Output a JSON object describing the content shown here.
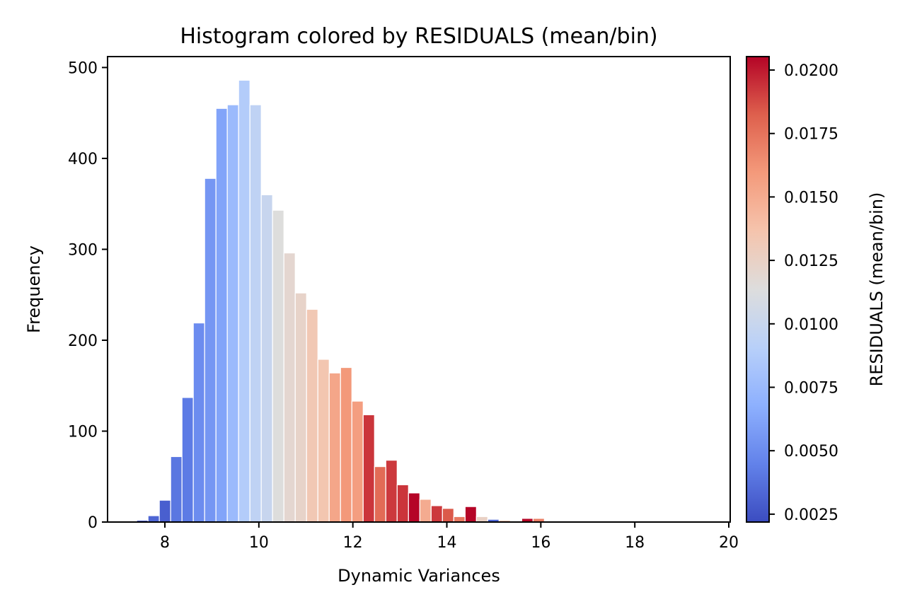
{
  "chart_data": {
    "type": "bar",
    "title": "Histogram colored by RESIDUALS (mean/bin)",
    "xlabel": "Dynamic Variances",
    "ylabel": "Frequency",
    "xlim": [
      6.78,
      20.03
    ],
    "ylim": [
      0,
      512
    ],
    "x_start": 7.4,
    "bin_width": 0.241,
    "counts": [
      2,
      7,
      24,
      72,
      137,
      219,
      378,
      455,
      459,
      486,
      459,
      360,
      343,
      296,
      252,
      234,
      179,
      164,
      170,
      133,
      118,
      61,
      68,
      41,
      32,
      25,
      18,
      15,
      6,
      17,
      6,
      3,
      2,
      0,
      4,
      4,
      0,
      1,
      0,
      0,
      0,
      0,
      0,
      0,
      0,
      0,
      0,
      0,
      0,
      0
    ],
    "residuals": [
      0.0028,
      0.0033,
      0.003,
      0.004,
      0.0042,
      0.005,
      0.0055,
      0.0062,
      0.0075,
      0.0088,
      0.0095,
      0.01,
      0.0114,
      0.012,
      0.0123,
      0.0133,
      0.0135,
      0.0153,
      0.016,
      0.0157,
      0.0193,
      0.0178,
      0.0192,
      0.0193,
      0.0205,
      0.015,
      0.0192,
      0.0184,
      0.0173,
      0.0205,
      0.0125,
      0.0032,
      0.0138,
      null,
      0.0205,
      0.017,
      null,
      0.0035,
      null,
      null,
      null,
      null,
      null,
      null,
      null,
      null,
      null,
      null,
      null,
      null
    ],
    "xticks": [
      8,
      10,
      12,
      14,
      16,
      18,
      20
    ],
    "xtick_labels": [
      "8",
      "10",
      "12",
      "14",
      "16",
      "18",
      "20"
    ],
    "yticks": [
      0,
      100,
      200,
      300,
      400,
      500
    ],
    "ytick_labels": [
      "0",
      "100",
      "200",
      "300",
      "400",
      "500"
    ],
    "grid": false,
    "colormap": "coolwarm",
    "colorbar": {
      "label": "RESIDUALS (mean/bin)",
      "range": [
        0.00219,
        0.02053
      ],
      "ticks": [
        0.0025,
        0.005,
        0.0075,
        0.01,
        0.0125,
        0.015,
        0.0175,
        0.02
      ],
      "tick_labels": [
        "0.0025",
        "0.0050",
        "0.0075",
        "0.0100",
        "0.0125",
        "0.0150",
        "0.0175",
        "0.0200"
      ]
    },
    "bar_edge_color": "#ffffff"
  }
}
